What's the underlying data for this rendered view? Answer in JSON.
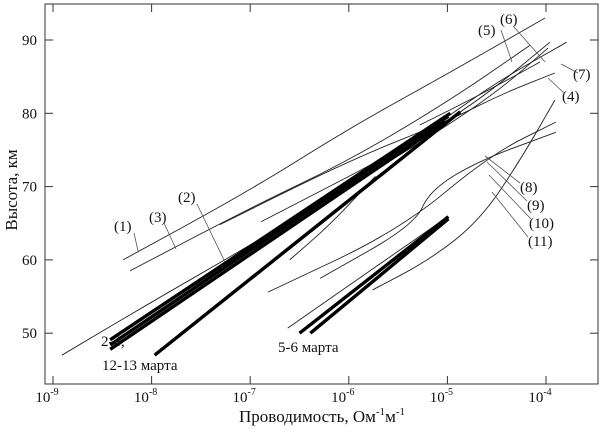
{
  "chart_data": {
    "type": "line",
    "title": "",
    "xlabel": "Проводимость, Ом⁻¹м⁻¹",
    "xlabel_main": "Проводимость, Ом",
    "xlabel_sup1": "-1",
    "xlabel_m": "м",
    "xlabel_sup2": "-1",
    "ylabel": "Высота, км",
    "xscale": "log",
    "xlim_log10": [
      -9.08,
      -3.47
    ],
    "ylim": [
      43,
      95
    ],
    "x_ticks_log10": [
      -9,
      -8,
      -7,
      -6,
      -5,
      -4
    ],
    "x_tick_labels": [
      {
        "base": "10",
        "exp": "-9"
      },
      {
        "base": "10",
        "exp": "-8"
      },
      {
        "base": "10",
        "exp": "-7"
      },
      {
        "base": "10",
        "exp": "-6"
      },
      {
        "base": "10",
        "exp": "-5"
      },
      {
        "base": "10",
        "exp": "-4"
      }
    ],
    "y_ticks": [
      50,
      60,
      70,
      80,
      90
    ],
    "y_tick_labels": [
      "50",
      "60",
      "70",
      "80",
      "90"
    ],
    "grid": false,
    "series": [
      {
        "name": "(1)",
        "thick": false,
        "points": [
          [
            -8.29,
            60.0
          ],
          [
            -7.0,
            69.5
          ],
          [
            -5.99,
            78.0
          ],
          [
            -4.97,
            85.6
          ],
          [
            -4.01,
            93.0
          ]
        ]
      },
      {
        "name": "(3)",
        "thick": false,
        "points": [
          [
            -8.22,
            58.5
          ],
          [
            -7.0,
            67.1
          ],
          [
            -5.99,
            73.6
          ],
          [
            -4.97,
            81.8
          ],
          [
            -4.16,
            89.3
          ]
        ]
      },
      {
        "name": "(2)",
        "thick": false,
        "points": [
          [
            -8.91,
            47.0
          ],
          [
            -8.02,
            54.1
          ],
          [
            -7.0,
            62.0
          ],
          [
            -5.99,
            70.2
          ],
          [
            -5.07,
            77.7
          ],
          [
            -4.47,
            83.2
          ],
          [
            -3.98,
            88.9
          ]
        ]
      },
      {
        "name": "(4)",
        "thick": false,
        "points": [
          [
            -7.31,
            64.8
          ],
          [
            -5.99,
            73.6
          ],
          [
            -4.97,
            79.1
          ],
          [
            -4.47,
            82.5
          ],
          [
            -3.91,
            85.5
          ]
        ]
      },
      {
        "name": "(5)",
        "thick": false,
        "points": [
          [
            -6.89,
            65.2
          ],
          [
            -5.48,
            75.0
          ],
          [
            -4.67,
            81.8
          ],
          [
            -3.96,
            89.7
          ]
        ]
      },
      {
        "name": "(6)",
        "thick": false,
        "points": [
          [
            -5.28,
            78.4
          ],
          [
            -4.67,
            82.5
          ],
          [
            -4.06,
            87.0
          ]
        ]
      },
      {
        "name": "(7)",
        "thick": false,
        "points": [
          [
            -4.97,
            79.8
          ],
          [
            -4.47,
            84.5
          ],
          [
            -3.79,
            89.7
          ]
        ]
      },
      {
        "name": "(8)",
        "thick": false,
        "points": [
          [
            -6.82,
            55.6
          ],
          [
            -5.48,
            64.1
          ],
          [
            -4.57,
            74.3
          ],
          [
            -3.9,
            78.8
          ]
        ]
      },
      {
        "name": "(9)",
        "thick": false,
        "points": [
          [
            -6.29,
            57.5
          ],
          [
            -5.33,
            64.8
          ],
          [
            -5.18,
            69.5
          ],
          [
            -4.67,
            73.6
          ],
          [
            -3.9,
            77.4
          ]
        ]
      },
      {
        "name": "(10)",
        "thick": false,
        "points": [
          [
            -6.6,
            60.0
          ],
          [
            -6.19,
            64.8
          ],
          [
            -5.73,
            71.4
          ]
        ]
      },
      {
        "name": "(11)",
        "thick": false,
        "points": [
          [
            -5.76,
            55.9
          ],
          [
            -5.18,
            60.0
          ],
          [
            -4.67,
            65.4
          ],
          [
            -4.26,
            73.6
          ],
          [
            -3.91,
            81.8
          ]
        ]
      },
      {
        "name": "2-4 марта a",
        "thick": true,
        "points": [
          [
            -8.42,
            49.1
          ],
          [
            -4.97,
            80.0
          ]
        ]
      },
      {
        "name": "2-4 марта b",
        "thick": true,
        "points": [
          [
            -8.42,
            48.4
          ],
          [
            -4.99,
            79.6
          ]
        ]
      },
      {
        "name": "12-13 марта a",
        "thick": true,
        "points": [
          [
            -8.42,
            47.8
          ],
          [
            -5.02,
            78.8
          ]
        ]
      },
      {
        "name": "12-13 марта b",
        "thick": true,
        "points": [
          [
            -7.97,
            47.0
          ],
          [
            -4.87,
            80.2
          ]
        ]
      },
      {
        "name": "5-6 марта thin",
        "thick": false,
        "points": [
          [
            -6.62,
            50.7
          ],
          [
            -5.07,
            65.2
          ]
        ]
      },
      {
        "name": "5-6 марта a",
        "thick": true,
        "points": [
          [
            -6.5,
            50.0
          ],
          [
            -4.99,
            65.9
          ]
        ]
      },
      {
        "name": "5-6 марта b",
        "thick": true,
        "points": [
          [
            -6.39,
            50.0
          ],
          [
            -4.99,
            65.6
          ]
        ]
      }
    ],
    "annotations": {
      "l1": "(1)",
      "l2": "(2)",
      "l3": "(3)",
      "l4": "(4)",
      "l5": "(5)",
      "l6": "(6)",
      "l7": "(7)",
      "l8": "(8)",
      "l9": "(9)",
      "l10": "(10)",
      "l11": "(11)",
      "group1_line1": "2-4,",
      "group1_line2": "12-13 марта",
      "group2": "5-6 марта"
    }
  }
}
